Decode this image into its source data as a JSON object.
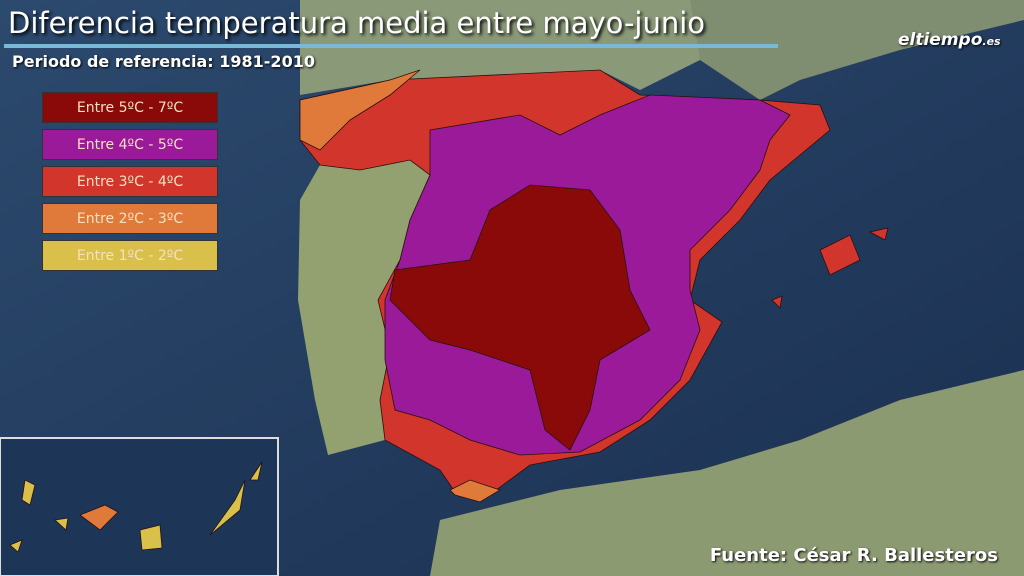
{
  "header": {
    "title": "Diferencia temperatura media entre mayo-junio",
    "subtitle": "Periodo de referencia: 1981-2010"
  },
  "logo": {
    "name": "eltiempo",
    "suffix": ".es"
  },
  "legend": {
    "items": [
      {
        "label": "Entre 5ºC - 7ºC",
        "color": "#8a0a0a"
      },
      {
        "label": "Entre 4ºC - 5ºC",
        "color": "#9a1a9a"
      },
      {
        "label": "Entre 3ºC - 4ºC",
        "color": "#d2352b"
      },
      {
        "label": "Entre 2ºC - 3ºC",
        "color": "#e07a3a"
      },
      {
        "label": "Entre 1ºC - 2ºC",
        "color": "#d8c04a"
      }
    ]
  },
  "source": "Fuente: César R. Ballesteros"
}
